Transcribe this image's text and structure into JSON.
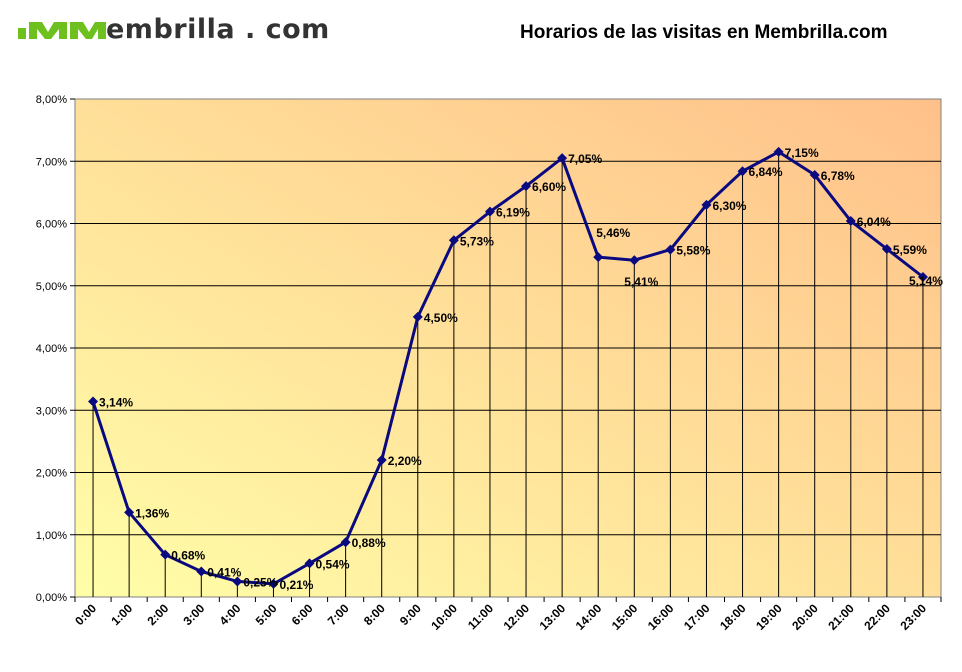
{
  "header": {
    "logo_text": "embrilla . com",
    "logo_full": "Membrilla.com",
    "title": "Horarios de las visitas en Membrilla.com"
  },
  "colors": {
    "line": "#0a0a80",
    "bg_start": "#fffea8",
    "bg_end": "#ffc08a",
    "logo_green": "#6ec01e"
  },
  "chart_data": {
    "type": "line",
    "title": "Horarios de las visitas en Membrilla.com",
    "categories": [
      "0:00",
      "1:00",
      "2:00",
      "3:00",
      "4:00",
      "5:00",
      "6:00",
      "7:00",
      "8:00",
      "9:00",
      "10:00",
      "11:00",
      "12:00",
      "13:00",
      "14:00",
      "15:00",
      "16:00",
      "17:00",
      "18:00",
      "19:00",
      "20:00",
      "21:00",
      "22:00",
      "23:00"
    ],
    "values": [
      3.14,
      1.36,
      0.68,
      0.41,
      0.25,
      0.21,
      0.54,
      0.88,
      2.2,
      4.5,
      5.73,
      6.19,
      6.6,
      7.05,
      5.46,
      5.41,
      5.58,
      6.3,
      6.84,
      7.15,
      6.78,
      6.04,
      5.59,
      5.14
    ],
    "labels": [
      "3,14%",
      "1,36%",
      "0,68%",
      "0,41%",
      "0,25%",
      "0,21%",
      "0,54%",
      "0,88%",
      "2,20%",
      "4,50%",
      "5,73%",
      "6,19%",
      "6,60%",
      "7,05%",
      "5,46%",
      "5,41%",
      "5,58%",
      "6,30%",
      "6,84%",
      "7,15%",
      "6,78%",
      "6,04%",
      "5,59%",
      "5,14%"
    ],
    "y_ticks": [
      "0,00%",
      "1,00%",
      "2,00%",
      "3,00%",
      "4,00%",
      "5,00%",
      "6,00%",
      "7,00%",
      "8,00%"
    ],
    "ylim": [
      0,
      8
    ],
    "grid": true,
    "legend": "none"
  }
}
